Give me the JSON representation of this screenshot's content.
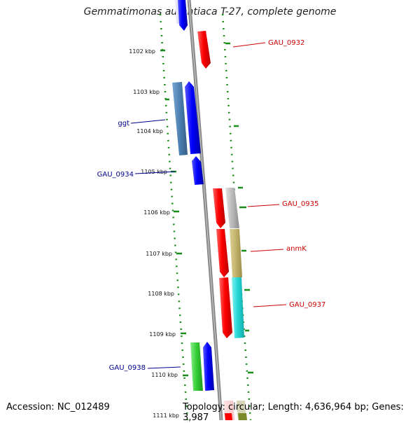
{
  "title": "Gemmatimonas aurantiaca T-27, complete genome",
  "footer": {
    "accession": "Accession: NC_012489",
    "topology": "Topology: circular; Length: 4,636,964 bp; Genes: 3,987"
  },
  "ticks": [
    "1102 kbp",
    "1103 kbp",
    "1104 kbp",
    "1105 kbp",
    "1106 kbp",
    "1107 kbp",
    "1108 kbp",
    "1109 kbp",
    "1110 kbp",
    "1111 kbp"
  ],
  "genes": [
    {
      "name": "GAU_0932",
      "color": "#cc0000",
      "side": "right"
    },
    {
      "name": "ggt",
      "color": "#00008b",
      "side": "left"
    },
    {
      "name": "GAU_0934",
      "color": "#00008b",
      "side": "left"
    },
    {
      "name": "GAU_0935",
      "color": "#cc0000",
      "side": "right"
    },
    {
      "name": "anmK",
      "color": "#cc0000",
      "side": "right"
    },
    {
      "name": "GAU_0937",
      "color": "#cc0000",
      "side": "right"
    },
    {
      "name": "GAU_0938",
      "color": "#00008b",
      "side": "left"
    }
  ],
  "colors": {
    "forward_strand": "#ff0000",
    "reverse_strand": "#0000ff",
    "backbone": "#888888",
    "gc_skew": "#1a8c1a",
    "cog_steelblue": "#4a7fb0",
    "cog_silver": "#b8b8b8",
    "cog_olive": "#c2b36a",
    "cog_cyan": "#22d6d6",
    "cog_green": "#33cc33"
  }
}
